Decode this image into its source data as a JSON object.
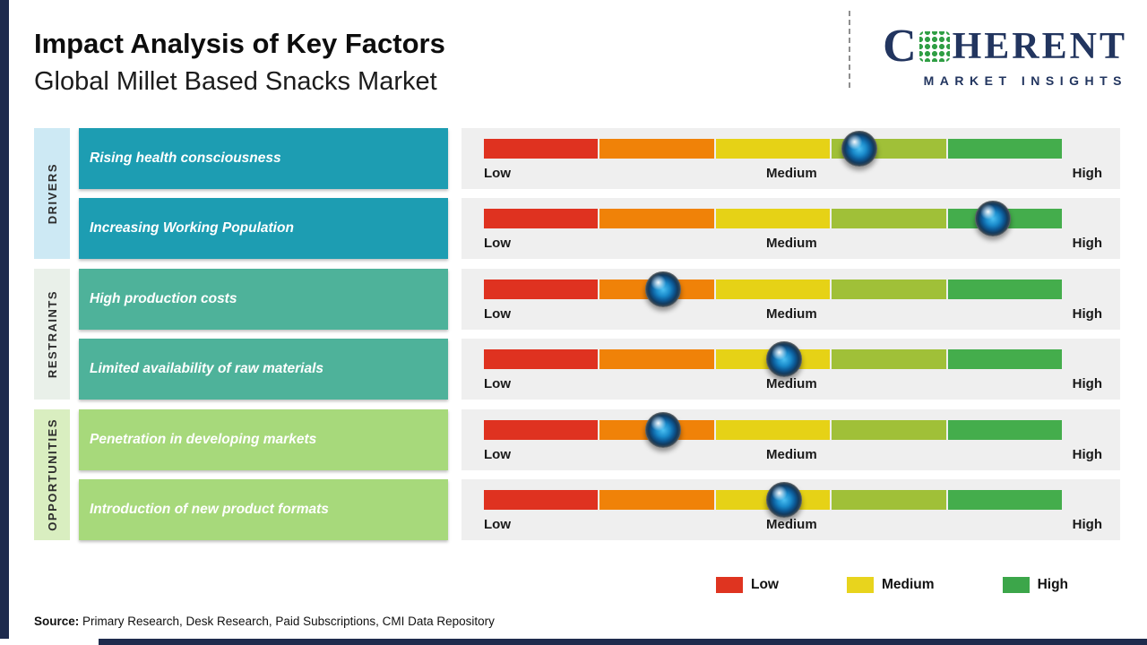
{
  "header": {
    "title": "Impact Analysis of Key Factors",
    "subtitle": "Global Millet Based Snacks Market"
  },
  "logo": {
    "part1": "C",
    "part2": "HERENT",
    "tagline": "MARKET INSIGHTS"
  },
  "groups": [
    {
      "category": "DRIVERS",
      "bg": "#cde9f4"
    },
    {
      "category": "RESTRAINTS",
      "bg": "#e9f0e9"
    },
    {
      "category": "OPPORTUNITIES",
      "bg": "#d9eec0"
    }
  ],
  "rows": [
    {
      "label": "Rising health consciousness",
      "group": "DRIVERS",
      "impact_pct": 65,
      "impact_level": "Medium-High",
      "box_color": "#1d9db2"
    },
    {
      "label": "Increasing Working Population",
      "group": "DRIVERS",
      "impact_pct": 88,
      "impact_level": "High",
      "box_color": "#1d9db2"
    },
    {
      "label": "High production costs",
      "group": "RESTRAINTS",
      "impact_pct": 31,
      "impact_level": "Low-Medium",
      "box_color": "#4eb29a"
    },
    {
      "label": "Limited availability of raw materials",
      "group": "RESTRAINTS",
      "impact_pct": 52,
      "impact_level": "Medium",
      "box_color": "#4eb29a"
    },
    {
      "label": "Penetration in developing markets",
      "group": "OPPORTUNITIES",
      "impact_pct": 31,
      "impact_level": "Low-Medium",
      "box_color": "#a7d97b"
    },
    {
      "label": "Introduction of new product formats",
      "group": "OPPORTUNITIES",
      "impact_pct": 52,
      "impact_level": "Medium",
      "box_color": "#a7d97b"
    }
  ],
  "scale_labels": {
    "low": "Low",
    "medium": "Medium",
    "high": "High"
  },
  "scale_colors": [
    "#df3220",
    "#f08208",
    "#e6d216",
    "#a0c038",
    "#44ad4c"
  ],
  "legend": [
    {
      "label": "Low",
      "color": "#df3420"
    },
    {
      "label": "Medium",
      "color": "#e8d41d"
    },
    {
      "label": "High",
      "color": "#3ca64a"
    }
  ],
  "source": {
    "prefix": "Source:",
    "text": " Primary Research, Desk Research, Paid Subscriptions, CMI Data Repository"
  },
  "chart_data": {
    "type": "scatter",
    "title": "Impact Analysis of Key Factors",
    "subtitle": "Global Millet Based Snacks Market",
    "x_scale": {
      "range": [
        0,
        100
      ],
      "tick_labels": [
        "Low",
        "Medium",
        "High"
      ],
      "tick_positions": [
        0,
        50,
        100
      ]
    },
    "categories": [
      "Rising health consciousness",
      "Increasing Working Population",
      "High production costs",
      "Limited availability of raw materials",
      "Penetration in developing markets",
      "Introduction of new product formats"
    ],
    "category_groups": [
      "DRIVERS",
      "DRIVERS",
      "RESTRAINTS",
      "RESTRAINTS",
      "OPPORTUNITIES",
      "OPPORTUNITIES"
    ],
    "values": [
      65,
      88,
      31,
      52,
      31,
      52
    ],
    "impact_levels": [
      "Medium-High",
      "High",
      "Low-Medium",
      "Medium",
      "Low-Medium",
      "Medium"
    ],
    "legend_entries": [
      "Low",
      "Medium",
      "High"
    ],
    "legend_position": "bottom-right",
    "grid": false
  }
}
